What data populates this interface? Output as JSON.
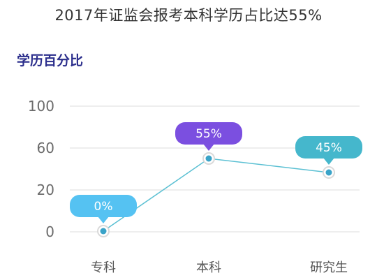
{
  "header": {
    "title": "2017年证监会报考本科学历占比达55%"
  },
  "chart_data": {
    "type": "line",
    "title": "2017年证监会报考本科学历占比达55%",
    "subtitle": "学历百分比",
    "categories": [
      "专科",
      "本科",
      "研究生"
    ],
    "series": [
      {
        "values": [
          0,
          55,
          45
        ]
      }
    ],
    "data_labels": [
      "0%",
      "55%",
      "45%"
    ],
    "y_ticks": [
      "0",
      "20",
      "60",
      "100"
    ],
    "grid": true,
    "colors": {
      "line": "#5bc0d3",
      "point": "#3aa3c8",
      "bubbles": [
        "#55c2f2",
        "#7b4fe0",
        "#45b7cc"
      ],
      "grid": "#dcdcdc"
    }
  }
}
